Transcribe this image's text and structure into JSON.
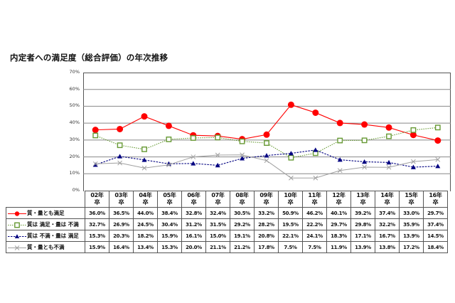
{
  "title": "内定者への満足度（総合評価）の年次推移",
  "chart_data": {
    "type": "line",
    "title": "内定者への満足度（総合評価）の年次推移",
    "xlabel": "",
    "ylabel": "",
    "ylim": [
      0,
      70
    ],
    "yticks": [
      "0%",
      "10%",
      "20%",
      "30%",
      "40%",
      "50%",
      "60%",
      "70%"
    ],
    "grid": true,
    "legend_position": "table-left",
    "categories": [
      "02年卒",
      "03年卒",
      "04年卒",
      "05年卒",
      "06年卒",
      "07年卒",
      "08年卒",
      "09年卒",
      "10年卒",
      "11年卒",
      "12年卒",
      "13年卒",
      "14年卒",
      "15年卒",
      "16年卒"
    ],
    "series": [
      {
        "name": "質・量とも満足",
        "color": "#ff0000",
        "marker": "circle",
        "line": "solid",
        "values": [
          36.0,
          36.5,
          44.0,
          38.4,
          32.8,
          32.4,
          30.5,
          33.2,
          50.9,
          46.2,
          40.1,
          39.2,
          37.4,
          33.0,
          29.7
        ],
        "labels": [
          "36.0%",
          "36.5%",
          "44.0%",
          "38.4%",
          "32.8%",
          "32.4%",
          "30.5%",
          "33.2%",
          "50.9%",
          "46.2%",
          "40.1%",
          "39.2%",
          "37.4%",
          "33.0%",
          "29.7%"
        ]
      },
      {
        "name": "質は 満足・量は 不満",
        "color": "#669933",
        "marker": "square",
        "line": "dotted",
        "values": [
          32.7,
          26.9,
          24.5,
          30.4,
          31.2,
          31.5,
          29.2,
          28.2,
          19.5,
          22.2,
          29.7,
          29.8,
          32.2,
          35.9,
          37.4
        ],
        "labels": [
          "32.7%",
          "26.9%",
          "24.5%",
          "30.4%",
          "31.2%",
          "31.5%",
          "29.2%",
          "28.2%",
          "19.5%",
          "22.2%",
          "29.7%",
          "29.8%",
          "32.2%",
          "35.9%",
          "37.4%"
        ]
      },
      {
        "name": "質は 不満・量は 満足",
        "color": "#000080",
        "marker": "triangle",
        "line": "dashed",
        "values": [
          15.3,
          20.3,
          18.2,
          15.9,
          16.1,
          15.0,
          19.1,
          20.8,
          22.1,
          24.1,
          18.3,
          17.1,
          16.7,
          13.9,
          14.5
        ],
        "labels": [
          "15.3%",
          "20.3%",
          "18.2%",
          "15.9%",
          "16.1%",
          "15.0%",
          "19.1%",
          "20.8%",
          "22.1%",
          "24.1%",
          "18.3%",
          "17.1%",
          "16.7%",
          "13.9%",
          "14.5%"
        ]
      },
      {
        "name": "質・量とも不満",
        "color": "#a0a0a0",
        "marker": "x",
        "line": "solid",
        "values": [
          15.9,
          16.4,
          13.4,
          15.3,
          20.0,
          21.1,
          21.2,
          17.8,
          7.5,
          7.5,
          11.9,
          13.9,
          13.8,
          17.2,
          18.4
        ],
        "labels": [
          "15.9%",
          "16.4%",
          "13.4%",
          "15.3%",
          "20.0%",
          "21.1%",
          "21.2%",
          "17.8%",
          "7.5%",
          "7.5%",
          "11.9%",
          "13.9%",
          "13.8%",
          "17.2%",
          "18.4%"
        ]
      }
    ]
  }
}
